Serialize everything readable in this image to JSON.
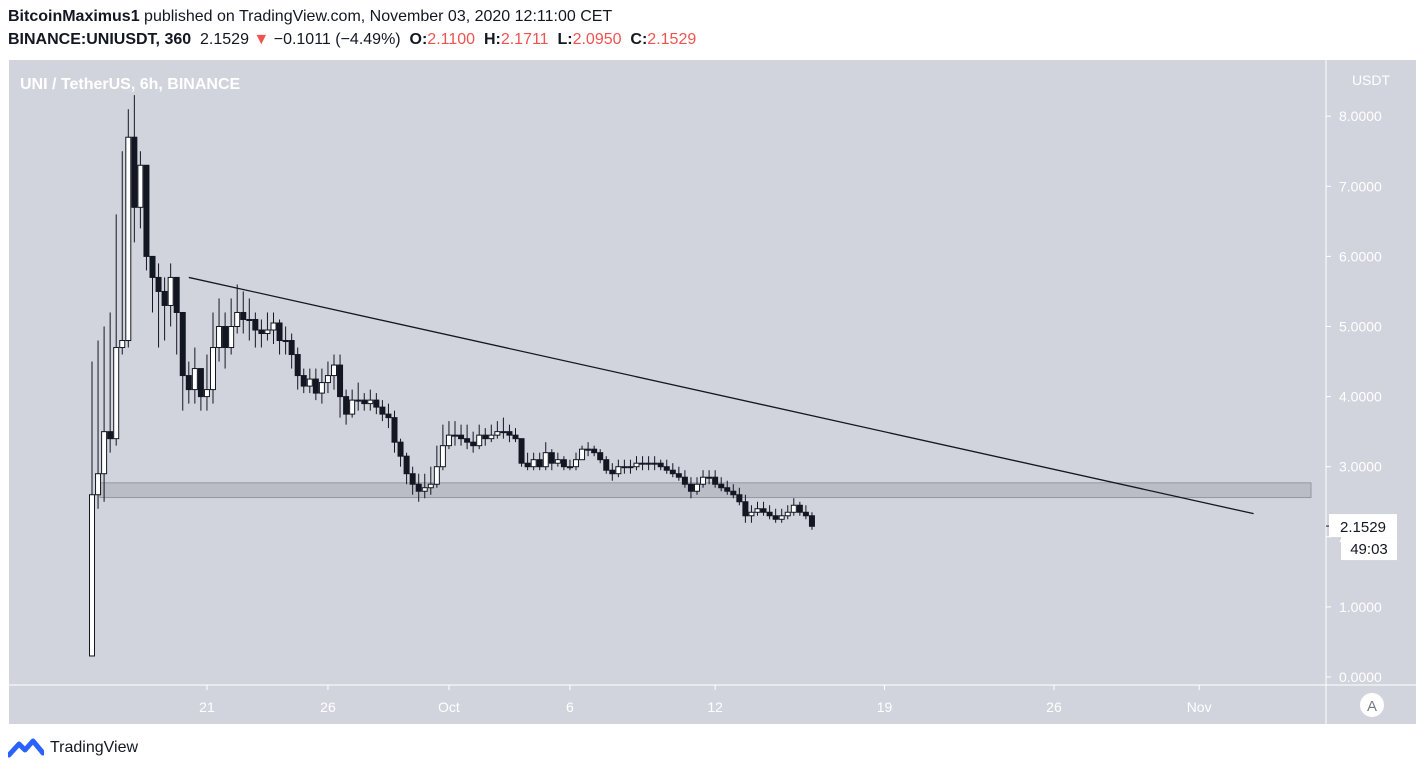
{
  "header": {
    "author": "BitcoinMaximus1",
    "published": "published on TradingView.com, November 03, 2020 12:11:00 CET",
    "symbol": "BINANCE:UNIUSDT, 360",
    "last": "2.1529",
    "change_arrow": "▼",
    "change": "−0.1011 (−4.49%)",
    "o_label": "O:",
    "o_value": "2.1100",
    "h_label": "H:",
    "h_value": "2.1711",
    "l_label": "L:",
    "l_value": "2.0950",
    "c_label": "C:",
    "c_value": "2.1529"
  },
  "footer": {
    "brand": "TradingView"
  },
  "colors": {
    "background": "#d1d4dc",
    "text": "#131722",
    "down": "#ef5350",
    "candle_up": "#ffffff",
    "candle_down": "#131722"
  },
  "chart_data": {
    "type": "candlestick",
    "title": "UNI / TetherUS, 6h, BINANCE",
    "currency": "USDT",
    "ylim": [
      0,
      8.6
    ],
    "yticks": [
      "8.0000",
      "7.0000",
      "6.0000",
      "5.0000",
      "4.0000",
      "3.0000",
      "2.0000",
      "1.0000",
      "0.0000"
    ],
    "ytick_values": [
      8,
      7,
      6,
      5,
      4,
      3,
      2,
      1,
      0
    ],
    "xticks": [
      {
        "label": "21",
        "index": 19
      },
      {
        "label": "26",
        "index": 39
      },
      {
        "label": "Oct",
        "index": 59
      },
      {
        "label": "6",
        "index": 79
      },
      {
        "label": "12",
        "index": 103
      },
      {
        "label": "19",
        "index": 131
      },
      {
        "label": "26",
        "index": 159
      },
      {
        "label": "Nov",
        "index": 183
      }
    ],
    "last_price_label": "2.1529",
    "countdown_label": "49:03",
    "scale_button": "A",
    "support_zone": {
      "low": 2.56,
      "high": 2.77
    },
    "trendline": [
      {
        "index": 16,
        "price": 5.7
      },
      {
        "index": 192,
        "price": 2.33
      }
    ],
    "closes": [
      2.6,
      2.9,
      3.5,
      3.4,
      4.7,
      4.8,
      7.7,
      6.7,
      7.3,
      6.0,
      5.7,
      5.5,
      5.3,
      5.7,
      5.2,
      4.3,
      4.1,
      4.4,
      4.0,
      4.1,
      4.7,
      5.0,
      4.7,
      5.0,
      5.2,
      5.1,
      5.1,
      4.95,
      4.9,
      4.95,
      5.05,
      4.8,
      4.8,
      4.6,
      4.3,
      4.15,
      4.25,
      4.05,
      4.2,
      4.3,
      4.45,
      4.0,
      3.75,
      3.95,
      3.95,
      3.9,
      3.95,
      3.85,
      3.75,
      3.7,
      3.35,
      3.15,
      2.9,
      2.75,
      2.65,
      2.7,
      2.75,
      3.0,
      3.3,
      3.45,
      3.45,
      3.4,
      3.35,
      3.3,
      3.45,
      3.4,
      3.45,
      3.5,
      3.5,
      3.45,
      3.4,
      3.05,
      3.0,
      3.1,
      3.0,
      3.2,
      3.05,
      3.1,
      3.0,
      3.0,
      3.1,
      3.25,
      3.25,
      3.2,
      3.1,
      2.95,
      2.9,
      3.0,
      3.0,
      3.0,
      3.05,
      3.05,
      3.05,
      3.05,
      3.0,
      2.95,
      2.9,
      2.85,
      2.75,
      2.65,
      2.75,
      2.85,
      2.85,
      2.75,
      2.7,
      2.65,
      2.6,
      2.5,
      2.3,
      2.35,
      2.4,
      2.35,
      2.3,
      2.25,
      2.3,
      2.35,
      2.45,
      2.35,
      2.3,
      2.15
    ],
    "highs": [
      4.5,
      4.8,
      5.0,
      5.2,
      6.6,
      7.5,
      8.1,
      8.3,
      7.5,
      7.2,
      6.0,
      5.9,
      5.7,
      5.9,
      5.7,
      4.7,
      4.5,
      4.7,
      4.4,
      4.6,
      5.2,
      5.4,
      5.2,
      5.4,
      5.6,
      5.5,
      5.4,
      5.2,
      5.1,
      5.2,
      5.2,
      5.1,
      5.0,
      4.9,
      4.7,
      4.4,
      4.4,
      4.4,
      4.4,
      4.5,
      4.6,
      4.6,
      4.1,
      4.1,
      4.2,
      4.05,
      4.1,
      4.05,
      3.95,
      3.9,
      3.8,
      3.4,
      3.2,
      3.0,
      2.9,
      2.9,
      3.0,
      3.3,
      3.6,
      3.65,
      3.65,
      3.6,
      3.6,
      3.5,
      3.6,
      3.55,
      3.6,
      3.65,
      3.7,
      3.6,
      3.55,
      3.4,
      3.2,
      3.2,
      3.2,
      3.35,
      3.25,
      3.2,
      3.15,
      3.1,
      3.2,
      3.3,
      3.35,
      3.3,
      3.25,
      3.15,
      3.05,
      3.1,
      3.1,
      3.1,
      3.15,
      3.15,
      3.15,
      3.15,
      3.1,
      3.1,
      3.05,
      3.0,
      2.95,
      2.85,
      2.85,
      2.95,
      2.95,
      2.95,
      2.85,
      2.8,
      2.75,
      2.7,
      2.6,
      2.45,
      2.5,
      2.5,
      2.45,
      2.4,
      2.4,
      2.45,
      2.55,
      2.5,
      2.45,
      2.35
    ],
    "lows": [
      0.3,
      2.4,
      2.5,
      3.2,
      3.3,
      4.6,
      4.7,
      6.2,
      6.4,
      5.8,
      5.2,
      4.7,
      4.8,
      5.0,
      4.6,
      3.8,
      3.9,
      3.9,
      3.8,
      3.8,
      3.9,
      4.5,
      4.4,
      4.6,
      4.9,
      4.9,
      4.8,
      4.7,
      4.7,
      4.8,
      4.75,
      4.6,
      4.6,
      4.4,
      4.1,
      4.05,
      4.05,
      3.95,
      3.9,
      4.05,
      4.1,
      3.7,
      3.6,
      3.7,
      3.8,
      3.8,
      3.8,
      3.75,
      3.65,
      3.55,
      3.2,
      3.0,
      2.75,
      2.6,
      2.5,
      2.55,
      2.6,
      2.7,
      2.95,
      3.25,
      3.3,
      3.3,
      3.25,
      3.2,
      3.25,
      3.3,
      3.35,
      3.4,
      3.4,
      3.35,
      3.35,
      3.0,
      2.95,
      2.95,
      2.95,
      2.95,
      2.95,
      3.0,
      2.95,
      2.95,
      2.95,
      3.1,
      3.15,
      3.15,
      3.05,
      2.9,
      2.8,
      2.85,
      2.9,
      2.9,
      2.95,
      2.95,
      2.95,
      2.95,
      2.95,
      2.9,
      2.85,
      2.8,
      2.7,
      2.55,
      2.6,
      2.7,
      2.75,
      2.7,
      2.65,
      2.6,
      2.55,
      2.45,
      2.2,
      2.2,
      2.3,
      2.3,
      2.25,
      2.2,
      2.2,
      2.25,
      2.3,
      2.3,
      2.25,
      2.1
    ]
  }
}
